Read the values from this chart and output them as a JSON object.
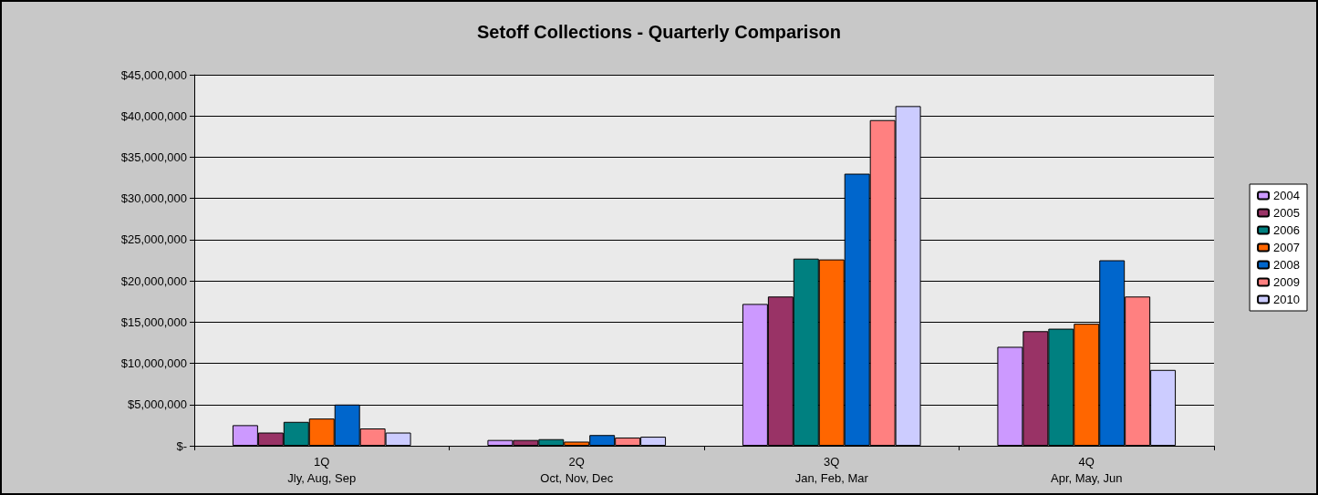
{
  "chart_data": {
    "type": "bar",
    "title": "Setoff Collections - Quarterly Comparison",
    "categories": [
      "1Q\nJly, Aug, Sep",
      "2Q\nOct, Nov, Dec",
      "3Q\nJan, Feb, Mar",
      "4Q\nApr, May, Jun"
    ],
    "series": [
      {
        "name": "2004",
        "color": "#cc99ff",
        "values": [
          2500000,
          700000,
          17200000,
          12000000
        ]
      },
      {
        "name": "2005",
        "color": "#993366",
        "values": [
          1600000,
          700000,
          18100000,
          13900000
        ]
      },
      {
        "name": "2006",
        "color": "#008080",
        "values": [
          2900000,
          800000,
          22700000,
          14200000
        ]
      },
      {
        "name": "2007",
        "color": "#ff6600",
        "values": [
          3300000,
          500000,
          22600000,
          14800000
        ]
      },
      {
        "name": "2008",
        "color": "#0066cc",
        "values": [
          5000000,
          1300000,
          33000000,
          22500000
        ]
      },
      {
        "name": "2009",
        "color": "#ff8080",
        "values": [
          2100000,
          1000000,
          39500000,
          18100000
        ]
      },
      {
        "name": "2010",
        "color": "#ccccff",
        "values": [
          1600000,
          1100000,
          41200000,
          9200000
        ]
      }
    ],
    "ylim": [
      0,
      45000000
    ],
    "yticks": [
      {
        "value": 0,
        "label": "$-"
      },
      {
        "value": 5000000,
        "label": "$5,000,000"
      },
      {
        "value": 10000000,
        "label": "$10,000,000"
      },
      {
        "value": 15000000,
        "label": "$15,000,000"
      },
      {
        "value": 20000000,
        "label": "$20,000,000"
      },
      {
        "value": 25000000,
        "label": "$25,000,000"
      },
      {
        "value": 30000000,
        "label": "$30,000,000"
      },
      {
        "value": 35000000,
        "label": "$35,000,000"
      },
      {
        "value": 40000000,
        "label": "$40,000,000"
      },
      {
        "value": 45000000,
        "label": "$45,000,000"
      }
    ],
    "grid": "y",
    "legend": "right"
  }
}
